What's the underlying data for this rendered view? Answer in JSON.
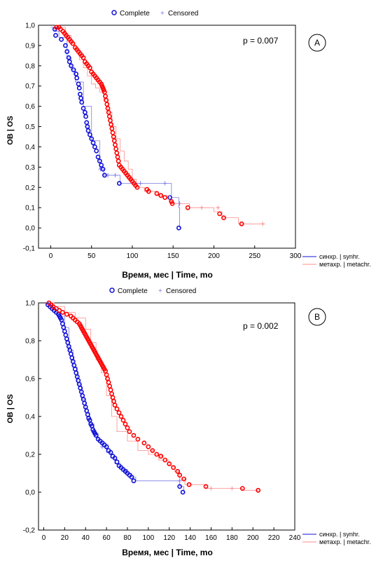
{
  "colors": {
    "synchronous": "#1010d8",
    "metachronous": "#ff0000",
    "censor_sync": "#7a7ae8",
    "censor_meta": "#ff8c8c"
  },
  "chart_data": [
    {
      "type": "line",
      "panel_label": "A",
      "p_value": "p = 0.007",
      "xlabel": "Время, мес | Time, mo",
      "ylabel": "ОВ | OS",
      "xlim": [
        -15,
        300
      ],
      "ylim": [
        -0.1,
        1.0
      ],
      "x_ticks": [
        "0",
        "50",
        "100",
        "150",
        "200",
        "250",
        "300"
      ],
      "y_ticks": [
        "-0,1",
        "0,0",
        "0,1",
        "0,2",
        "0,3",
        "0,4",
        "0,5",
        "0,6",
        "0,7",
        "0,8",
        "0,9",
        "1,0"
      ],
      "legend_top": {
        "complete": "Complete",
        "censored": "Censored"
      },
      "series": [
        {
          "name": "синхр. | synhr.",
          "color": "#1010d8",
          "x": [
            0,
            5,
            5,
            10,
            10,
            20,
            20,
            25,
            30,
            40,
            50,
            60,
            65,
            70,
            85,
            100,
            147,
            148,
            157,
            158
          ],
          "y": [
            0.99,
            0.99,
            0.97,
            0.97,
            0.94,
            0.88,
            0.84,
            0.78,
            0.72,
            0.6,
            0.43,
            0.29,
            0.26,
            0.26,
            0.22,
            0.22,
            0.22,
            0.15,
            0.1,
            0.0
          ],
          "events_x": [
            5,
            6,
            13,
            18,
            20,
            22,
            23,
            25,
            28,
            31,
            32,
            34,
            35,
            36,
            37,
            38,
            40,
            42,
            43,
            44,
            45,
            46,
            48,
            50,
            52,
            54,
            56,
            58,
            60,
            62,
            64,
            66,
            84,
            146,
            157
          ],
          "events_y": [
            0.98,
            0.95,
            0.93,
            0.9,
            0.87,
            0.84,
            0.82,
            0.8,
            0.78,
            0.76,
            0.74,
            0.71,
            0.69,
            0.66,
            0.64,
            0.62,
            0.59,
            0.57,
            0.55,
            0.52,
            0.5,
            0.48,
            0.46,
            0.44,
            0.42,
            0.4,
            0.38,
            0.35,
            0.33,
            0.31,
            0.29,
            0.26,
            0.22,
            0.15,
            0.0
          ],
          "censored_x": [
            61,
            70,
            79,
            110,
            140,
            158
          ],
          "censored_y": [
            0.29,
            0.26,
            0.26,
            0.22,
            0.22,
            0.12
          ]
        },
        {
          "name": "метахр. | metachr.",
          "color": "#ff0000",
          "x": [
            5,
            10,
            18,
            25,
            30,
            35,
            40,
            45,
            50,
            55,
            60,
            65,
            70,
            75,
            80,
            85,
            90,
            95,
            100,
            105,
            115,
            130,
            145,
            150,
            170,
            200,
            210,
            230,
            260
          ],
          "y": [
            1.0,
            0.99,
            0.95,
            0.91,
            0.88,
            0.83,
            0.79,
            0.75,
            0.71,
            0.69,
            0.67,
            0.63,
            0.57,
            0.5,
            0.44,
            0.38,
            0.33,
            0.29,
            0.24,
            0.2,
            0.18,
            0.16,
            0.13,
            0.12,
            0.1,
            0.08,
            0.05,
            0.02,
            0.02
          ],
          "events_x": [
            7,
            10,
            12,
            15,
            17,
            19,
            21,
            23,
            25,
            27,
            30,
            32,
            34,
            36,
            38,
            40,
            42,
            44,
            46,
            48,
            50,
            52,
            54,
            56,
            58,
            60,
            62,
            63,
            64,
            65,
            66,
            67,
            68,
            69,
            70,
            71,
            72,
            73,
            74,
            75,
            76,
            77,
            78,
            79,
            80,
            81,
            82,
            83,
            84,
            86,
            88,
            90,
            92,
            94,
            96,
            98,
            100,
            102,
            104,
            106,
            118,
            120,
            130,
            135,
            140,
            148,
            149,
            168,
            207,
            212,
            234
          ],
          "events_y": [
            0.99,
            0.99,
            0.98,
            0.97,
            0.96,
            0.95,
            0.94,
            0.93,
            0.92,
            0.91,
            0.89,
            0.88,
            0.87,
            0.86,
            0.85,
            0.84,
            0.82,
            0.81,
            0.8,
            0.79,
            0.77,
            0.76,
            0.75,
            0.74,
            0.73,
            0.72,
            0.71,
            0.7,
            0.69,
            0.68,
            0.67,
            0.65,
            0.63,
            0.61,
            0.59,
            0.57,
            0.55,
            0.53,
            0.51,
            0.49,
            0.47,
            0.45,
            0.43,
            0.41,
            0.39,
            0.37,
            0.35,
            0.33,
            0.31,
            0.3,
            0.29,
            0.28,
            0.27,
            0.26,
            0.25,
            0.24,
            0.23,
            0.22,
            0.21,
            0.2,
            0.19,
            0.18,
            0.17,
            0.16,
            0.15,
            0.13,
            0.12,
            0.1,
            0.07,
            0.05,
            0.02
          ],
          "censored_x": [
            97,
            185,
            205,
            260
          ],
          "censored_y": [
            0.24,
            0.1,
            0.1,
            0.02
          ]
        }
      ]
    },
    {
      "type": "line",
      "panel_label": "B",
      "p_value": "p = 0.002",
      "xlabel": "Время, мес | Time, mo",
      "ylabel": "ОВ | OS",
      "xlim": [
        -5,
        240
      ],
      "ylim": [
        -0.2,
        1.0
      ],
      "x_ticks": [
        "0",
        "20",
        "40",
        "60",
        "80",
        "100",
        "120",
        "140",
        "160",
        "180",
        "200",
        "220",
        "240"
      ],
      "y_ticks": [
        "-0,2",
        "0,0",
        "0,2",
        "0,4",
        "0,6",
        "0,8",
        "1,0"
      ],
      "legend_top": {
        "complete": "Complete",
        "censored": "Censored"
      },
      "series": [
        {
          "name": "синхр. | synhr.",
          "color": "#1010d8",
          "x": [
            3,
            8,
            12,
            16,
            20,
            24,
            28,
            32,
            36,
            40,
            44,
            48,
            52,
            56,
            60,
            64,
            68,
            72,
            76,
            80,
            84,
            88,
            100,
            125,
            130,
            134
          ],
          "y": [
            1.0,
            0.97,
            0.95,
            0.93,
            0.87,
            0.75,
            0.66,
            0.57,
            0.49,
            0.42,
            0.36,
            0.31,
            0.27,
            0.24,
            0.21,
            0.18,
            0.15,
            0.13,
            0.12,
            0.1,
            0.08,
            0.06,
            0.06,
            0.06,
            0.03,
            0.0
          ],
          "events_x": [
            4,
            6,
            8,
            10,
            12,
            14,
            15,
            16,
            17,
            18,
            19,
            20,
            21,
            22,
            23,
            24,
            25,
            26,
            27,
            28,
            29,
            30,
            31,
            32,
            33,
            34,
            35,
            36,
            37,
            38,
            39,
            40,
            41,
            42,
            43,
            44,
            45,
            46,
            47,
            48,
            49,
            50,
            52,
            54,
            56,
            58,
            60,
            62,
            64,
            66,
            68,
            70,
            72,
            74,
            76,
            78,
            80,
            82,
            84,
            86,
            130,
            133
          ],
          "events_y": [
            0.99,
            0.98,
            0.97,
            0.96,
            0.95,
            0.94,
            0.93,
            0.92,
            0.91,
            0.89,
            0.87,
            0.85,
            0.83,
            0.81,
            0.79,
            0.77,
            0.75,
            0.73,
            0.71,
            0.69,
            0.67,
            0.65,
            0.63,
            0.61,
            0.59,
            0.57,
            0.55,
            0.53,
            0.51,
            0.49,
            0.47,
            0.45,
            0.43,
            0.41,
            0.39,
            0.38,
            0.36,
            0.35,
            0.33,
            0.32,
            0.31,
            0.3,
            0.28,
            0.27,
            0.26,
            0.25,
            0.24,
            0.22,
            0.21,
            0.19,
            0.18,
            0.16,
            0.14,
            0.13,
            0.12,
            0.11,
            0.1,
            0.09,
            0.08,
            0.06,
            0.03,
            0.0
          ],
          "censored_x": [
            56,
            78,
            130
          ],
          "censored_y": [
            0.24,
            0.11,
            0.06
          ]
        },
        {
          "name": "метахр. | metachr.",
          "color": "#ff0000",
          "x": [
            5,
            10,
            20,
            30,
            40,
            45,
            50,
            55,
            60,
            65,
            70,
            80,
            90,
            100,
            110,
            120,
            125,
            130,
            135,
            140,
            155,
            190,
            205
          ],
          "y": [
            1.0,
            0.98,
            0.95,
            0.92,
            0.86,
            0.79,
            0.7,
            0.63,
            0.51,
            0.4,
            0.32,
            0.27,
            0.22,
            0.2,
            0.17,
            0.14,
            0.11,
            0.07,
            0.04,
            0.04,
            0.02,
            0.01,
            0.0
          ],
          "events_x": [
            5,
            7,
            9,
            12,
            15,
            18,
            22,
            26,
            28,
            30,
            32,
            34,
            35,
            36,
            37,
            38,
            39,
            40,
            41,
            42,
            43,
            44,
            45,
            46,
            47,
            48,
            49,
            50,
            51,
            52,
            53,
            54,
            55,
            56,
            57,
            58,
            59,
            60,
            61,
            62,
            63,
            64,
            65,
            66,
            67,
            68,
            70,
            72,
            74,
            76,
            78,
            80,
            82,
            86,
            90,
            96,
            100,
            104,
            108,
            112,
            116,
            120,
            124,
            128,
            130,
            134,
            139,
            155,
            190,
            205
          ],
          "events_y": [
            1.0,
            0.99,
            0.98,
            0.97,
            0.96,
            0.95,
            0.94,
            0.93,
            0.92,
            0.91,
            0.9,
            0.89,
            0.88,
            0.87,
            0.86,
            0.85,
            0.84,
            0.83,
            0.82,
            0.81,
            0.8,
            0.79,
            0.78,
            0.77,
            0.76,
            0.75,
            0.74,
            0.73,
            0.72,
            0.71,
            0.7,
            0.69,
            0.68,
            0.67,
            0.66,
            0.65,
            0.64,
            0.62,
            0.6,
            0.58,
            0.56,
            0.54,
            0.52,
            0.5,
            0.48,
            0.46,
            0.44,
            0.42,
            0.4,
            0.38,
            0.36,
            0.34,
            0.32,
            0.3,
            0.28,
            0.26,
            0.24,
            0.22,
            0.2,
            0.19,
            0.17,
            0.15,
            0.13,
            0.11,
            0.09,
            0.07,
            0.04,
            0.03,
            0.02,
            0.01
          ],
          "censored_x": [
            104,
            113,
            160,
            180
          ],
          "censored_y": [
            0.22,
            0.19,
            0.02,
            0.02
          ]
        }
      ]
    }
  ]
}
